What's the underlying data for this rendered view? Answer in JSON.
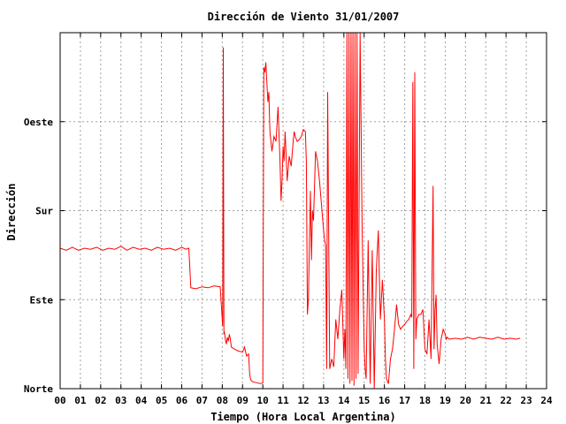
{
  "chart_data": {
    "type": "line",
    "title": "Dirección de Viento 31/01/2007",
    "xlabel": "Tiempo (Hora Local Argentina)",
    "ylabel": "Dirección",
    "x_ticks": [
      "00",
      "01",
      "02",
      "03",
      "04",
      "05",
      "06",
      "07",
      "08",
      "09",
      "10",
      "11",
      "12",
      "13",
      "14",
      "15",
      "16",
      "17",
      "18",
      "19",
      "20",
      "21",
      "22",
      "23",
      "24"
    ],
    "xlim": [
      0,
      24
    ],
    "y_ticks": [
      {
        "label": "Norte",
        "value": 0
      },
      {
        "label": "Este",
        "value": 90
      },
      {
        "label": "Sur",
        "value": 180
      },
      {
        "label": "Oeste",
        "value": 270
      }
    ],
    "ylim": [
      0,
      360
    ],
    "grid": true,
    "line_color": "#ff0000",
    "series": [
      {
        "x": [
          0.0,
          0.3,
          0.6,
          0.9,
          1.2,
          1.5,
          1.8,
          2.1,
          2.4,
          2.7,
          3.0,
          3.3,
          3.6,
          3.9,
          4.2,
          4.5,
          4.8,
          5.1,
          5.4,
          5.7,
          6.0,
          6.2,
          6.35,
          6.45,
          6.7,
          7.0,
          7.3,
          7.6,
          7.9,
          8.02,
          8.05,
          8.08,
          8.1,
          8.15,
          8.2,
          8.25,
          8.3,
          8.35,
          8.4,
          8.45,
          8.6,
          8.8,
          9.0,
          9.1,
          9.2,
          9.3,
          9.35,
          9.4,
          9.5,
          9.7,
          9.9,
          10.0,
          10.05,
          10.1,
          10.15,
          10.25,
          10.3,
          10.35,
          10.45,
          10.55,
          10.65,
          10.75,
          10.85,
          10.9,
          10.95,
          11.0,
          11.05,
          11.1,
          11.2,
          11.3,
          11.4,
          11.5,
          11.55,
          11.6,
          11.7,
          11.8,
          11.9,
          12.0,
          12.1,
          12.15,
          12.2,
          12.25,
          12.3,
          12.35,
          12.4,
          12.45,
          12.5,
          12.6,
          12.7,
          12.8,
          12.9,
          13.0,
          13.05,
          13.1,
          13.15,
          13.2,
          13.3,
          13.4,
          13.5,
          13.6,
          13.7,
          13.8,
          13.9,
          14.0,
          14.05,
          14.1,
          14.15,
          14.2,
          14.25,
          14.3,
          14.35,
          14.4,
          14.45,
          14.5,
          14.55,
          14.6,
          14.65,
          14.7,
          14.8,
          14.9,
          15.0,
          15.05,
          15.1,
          15.2,
          15.3,
          15.4,
          15.5,
          15.6,
          15.7,
          15.8,
          15.9,
          16.0,
          16.05,
          16.1,
          16.2,
          16.3,
          16.4,
          16.5,
          16.6,
          16.7,
          16.8,
          16.9,
          17.0,
          17.1,
          17.2,
          17.3,
          17.35,
          17.4,
          17.45,
          17.5,
          17.55,
          17.6,
          17.7,
          17.8,
          17.9,
          18.0,
          18.1,
          18.2,
          18.3,
          18.4,
          18.45,
          18.5,
          18.55,
          18.6,
          18.7,
          18.8,
          18.9,
          19.0,
          19.05,
          19.1,
          19.2,
          19.5,
          19.8,
          20.1,
          20.4,
          20.7,
          21.0,
          21.3,
          21.6,
          21.9,
          22.2,
          22.5,
          22.7
        ],
        "y": [
          142,
          140,
          143,
          140,
          142,
          141,
          143,
          140,
          142,
          141,
          144,
          140,
          143,
          141,
          142,
          140,
          143,
          141,
          142,
          140,
          143,
          141,
          142,
          102,
          101,
          103,
          102,
          104,
          103,
          63,
          345,
          55,
          58,
          50,
          45,
          52,
          48,
          55,
          50,
          42,
          40,
          38,
          37,
          42,
          33,
          35,
          15,
          9,
          7,
          6,
          5,
          6,
          325,
          320,
          330,
          290,
          300,
          260,
          240,
          255,
          250,
          285,
          230,
          190,
          210,
          245,
          230,
          260,
          210,
          235,
          225,
          250,
          260,
          255,
          250,
          252,
          255,
          262,
          260,
          230,
          75,
          90,
          150,
          200,
          130,
          180,
          170,
          240,
          230,
          210,
          185,
          160,
          150,
          145,
          20,
          300,
          20,
          30,
          22,
          70,
          50,
          80,
          100,
          30,
          60,
          20,
          360,
          10,
          360,
          5,
          360,
          8,
          360,
          3,
          360,
          10,
          360,
          15,
          360,
          160,
          40,
          20,
          10,
          150,
          5,
          140,
          0,
          120,
          160,
          70,
          110,
          70,
          30,
          10,
          5,
          30,
          40,
          60,
          85,
          65,
          60,
          63,
          65,
          68,
          70,
          75,
          72,
          310,
          20,
          320,
          50,
          70,
          75,
          75,
          80,
          40,
          35,
          70,
          30,
          205,
          40,
          80,
          95,
          45,
          25,
          50,
          60,
          55,
          50,
          52,
          50,
          51,
          50,
          52,
          50,
          52,
          51,
          50,
          52,
          50,
          51,
          50,
          51
        ]
      }
    ]
  }
}
